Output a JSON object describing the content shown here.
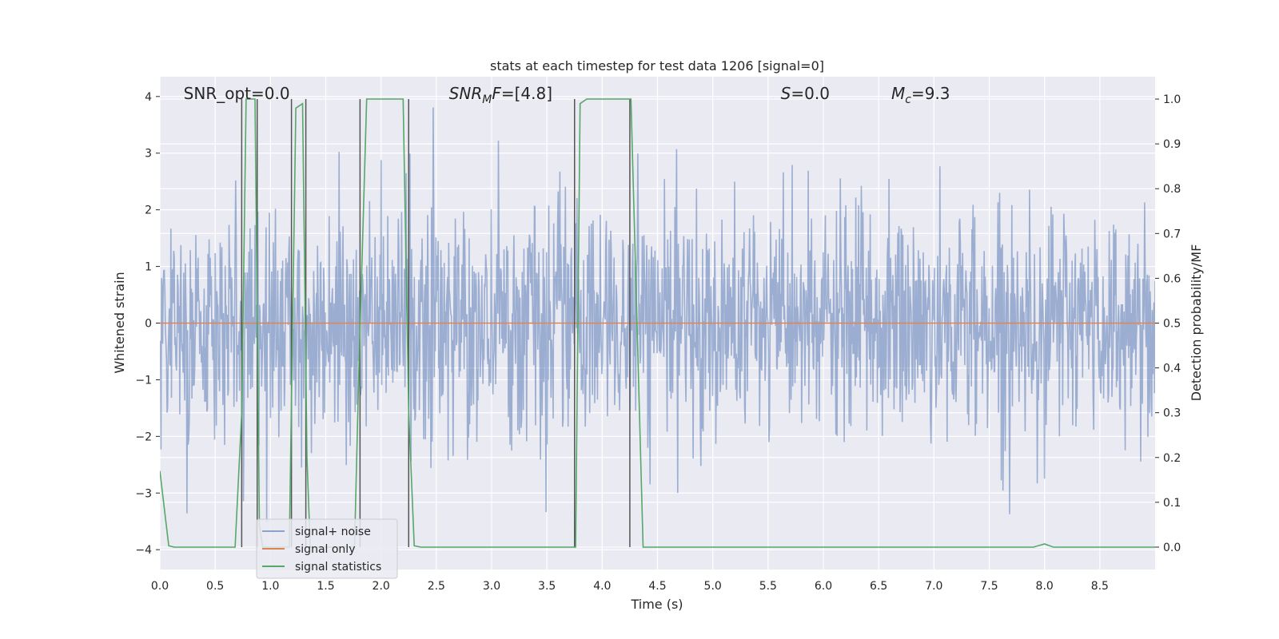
{
  "chart_data": {
    "type": "line",
    "title": "stats at each timestep for test data 1206 [signal=0]",
    "xlabel": "Time (s)",
    "ylabel": "Whitened strain",
    "ylabel_right": "Detection probability/MF",
    "xlim": [
      0,
      9.0
    ],
    "ylim": [
      -4.35,
      4.35
    ],
    "ylim_right": [
      -0.05,
      1.05
    ],
    "x_ticks": [
      0.0,
      0.5,
      1.0,
      1.5,
      2.0,
      2.5,
      3.0,
      3.5,
      4.0,
      4.5,
      5.0,
      5.5,
      6.0,
      6.5,
      7.0,
      7.5,
      8.0,
      8.5
    ],
    "x_tick_labels": [
      "0.0",
      "0.5",
      "1.0",
      "1.5",
      "2.0",
      "2.5",
      "3.0",
      "3.5",
      "4.0",
      "4.5",
      "5.0",
      "5.5",
      "6.0",
      "6.5",
      "7.0",
      "7.5",
      "8.0",
      "8.5"
    ],
    "y_ticks": [
      -4,
      -3,
      -2,
      -1,
      0,
      1,
      2,
      3,
      4
    ],
    "y_tick_labels": [
      "−4",
      "−3",
      "−2",
      "−1",
      "0",
      "1",
      "2",
      "3",
      "4"
    ],
    "y_ticks_right": [
      0.0,
      0.1,
      0.2,
      0.3,
      0.4,
      0.5,
      0.6,
      0.7,
      0.8,
      0.9,
      1.0
    ],
    "y_tick_labels_right": [
      "0.0",
      "0.1",
      "0.2",
      "0.3",
      "0.4",
      "0.5",
      "0.6",
      "0.7",
      "0.8",
      "0.9",
      "1.0"
    ],
    "grid": true,
    "legend_position": "lower-left",
    "annotations": [
      {
        "kind": "plain",
        "text": "SNR_opt=0.0",
        "x": 0.2
      },
      {
        "kind": "sub",
        "base": "SNR",
        "sub": "M",
        "rest": "F=[4.8]",
        "x": 2.6
      },
      {
        "kind": "math",
        "base": "S",
        "rest": "=0.0",
        "x": 5.6
      },
      {
        "kind": "sub",
        "base": "M",
        "sub": "c",
        "rest": "=9.3",
        "x": 6.6
      }
    ],
    "series": [
      {
        "name": "signal+ noise",
        "color": "#4c72b0",
        "kind": "noise",
        "amplitude": 1.0,
        "n_samples": 1800
      },
      {
        "name": "signal only",
        "color": "#dd8452",
        "kind": "constant",
        "value": 0
      },
      {
        "name": "signal statistics",
        "color": "#55a868",
        "axis": "right",
        "points": [
          [
            0.0,
            0.17
          ],
          [
            0.08,
            0.003
          ],
          [
            0.13,
            0.0
          ],
          [
            0.68,
            0.0
          ],
          [
            0.74,
            0.3
          ],
          [
            0.78,
            1.0
          ],
          [
            0.86,
            1.0
          ],
          [
            0.9,
            0.05
          ],
          [
            0.93,
            0.0
          ],
          [
            1.17,
            0.0
          ],
          [
            1.23,
            0.98
          ],
          [
            1.29,
            0.99
          ],
          [
            1.33,
            0.2
          ],
          [
            1.36,
            0.0
          ],
          [
            1.76,
            0.0
          ],
          [
            1.8,
            0.4
          ],
          [
            1.87,
            1.0
          ],
          [
            2.2,
            1.0
          ],
          [
            2.25,
            0.3
          ],
          [
            2.3,
            0.003
          ],
          [
            2.36,
            0.0
          ],
          [
            3.76,
            0.0
          ],
          [
            3.8,
            0.99
          ],
          [
            3.86,
            1.0
          ],
          [
            4.26,
            1.0
          ],
          [
            4.37,
            0.0
          ],
          [
            7.9,
            0.0
          ],
          [
            8.0,
            0.007
          ],
          [
            8.08,
            0.0
          ],
          [
            9.0,
            0.0
          ]
        ]
      }
    ],
    "vlines": [
      0.74,
      0.88,
      1.19,
      1.32,
      1.81,
      2.25,
      3.75,
      4.25
    ]
  },
  "colors": {
    "plot_bg": "#eaeaf2",
    "grid": "#ffffff",
    "vline": "#555555",
    "text": "#262626"
  }
}
